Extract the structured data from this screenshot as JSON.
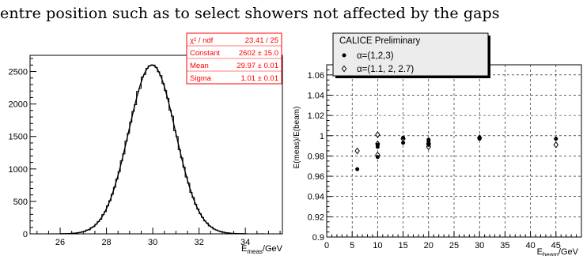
{
  "caption_line": "entre position such as to select showers not affected by the gaps",
  "chart_data": [
    {
      "type": "histogram",
      "xlabel_main": "E",
      "xlabel_sub": "meas",
      "xlabel_unit": "/GeV",
      "ylabel": "",
      "xlim": [
        24.7,
        35.6
      ],
      "ylim": [
        0,
        2750
      ],
      "xticks": [
        26,
        28,
        30,
        32,
        34
      ],
      "yticks": [
        0,
        500,
        1000,
        1500,
        2000,
        2500
      ],
      "grid": false,
      "fit": {
        "type": "gaussian",
        "constant": 2602,
        "mean": 29.97,
        "sigma": 1.01
      },
      "stats_box": {
        "color": "#ff0000",
        "rows": [
          {
            "label": "χ² / ndf",
            "value": "23.41 / 25"
          },
          {
            "label": "Constant",
            "value": "2602 ± 15.0"
          },
          {
            "label": "Mean",
            "value": "29.97 ± 0.01"
          },
          {
            "label": "Sigma",
            "value": "1.01 ± 0.01"
          }
        ]
      }
    },
    {
      "type": "scatter",
      "xlabel_main": "E",
      "xlabel_sub": "beam",
      "xlabel_unit": "/GeV",
      "ylabel": "E(meas)/E(beam)",
      "xlim": [
        0,
        50
      ],
      "ylim": [
        0.9,
        1.07
      ],
      "xticks": [
        0,
        5,
        10,
        15,
        20,
        25,
        30,
        35,
        40,
        45
      ],
      "yticks": [
        "0.9",
        "0.92",
        "0.94",
        "0.96",
        "0.98",
        "1",
        "1.02",
        "1.04",
        "1.06"
      ],
      "grid": true,
      "legend": {
        "title": "CALICE Preliminary",
        "placement": "top-left"
      },
      "series": [
        {
          "name": "α=(1,2,3)",
          "marker": "filled-circle",
          "points": [
            [
              6,
              0.967
            ],
            [
              10,
              0.979
            ],
            [
              10,
              0.989
            ],
            [
              10,
              0.991
            ],
            [
              15,
              0.993
            ],
            [
              15,
              0.998
            ],
            [
              20,
              0.991
            ],
            [
              20,
              0.994
            ],
            [
              20,
              0.996
            ],
            [
              30,
              0.997
            ],
            [
              30,
              0.998
            ],
            [
              45,
              0.997
            ]
          ]
        },
        {
          "name": "α=(1.1, 2, 2.7)",
          "marker": "open-diamond",
          "points": [
            [
              6,
              0.985
            ],
            [
              10,
              0.981
            ],
            [
              10,
              0.992
            ],
            [
              10,
              1.001
            ],
            [
              15,
              0.997
            ],
            [
              20,
              0.989
            ],
            [
              20,
              0.992
            ],
            [
              30,
              0.998
            ],
            [
              45,
              0.991
            ]
          ]
        }
      ]
    }
  ]
}
